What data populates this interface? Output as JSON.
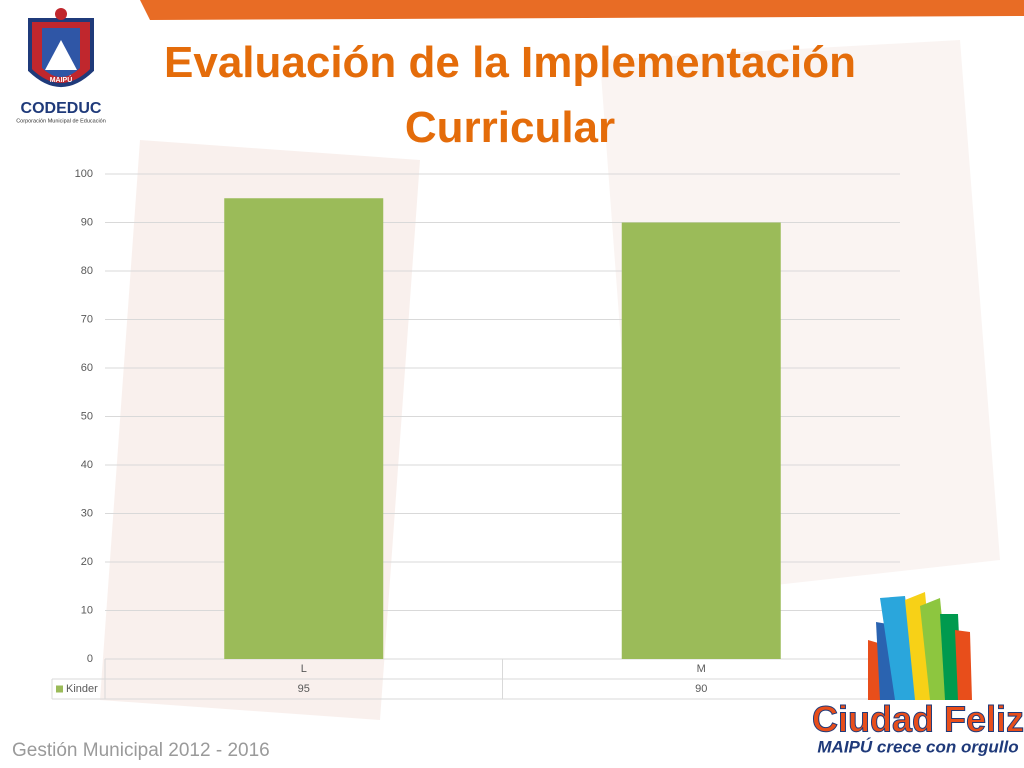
{
  "chart_data": {
    "type": "bar",
    "title": "Evaluación de la Implementación Curricular",
    "categories": [
      "L",
      "M"
    ],
    "series": [
      {
        "name": "Kinder",
        "color": "#9bbb59",
        "values": [
          95,
          90
        ]
      }
    ],
    "ylim": [
      0,
      100
    ],
    "yticks": [
      0,
      10,
      20,
      30,
      40,
      50,
      60,
      70,
      80,
      90,
      100
    ],
    "grid": true
  },
  "slide": {
    "logo_name": "CODEDUC",
    "logo_subtitle": "Corporación Municipal de Educación",
    "logo_badge": "MAIPÚ",
    "brand": "Ciudad Feliz",
    "slogan": "MAIPÚ crece con orgullo",
    "footer": "Gestión Municipal 2012 - 2016"
  }
}
